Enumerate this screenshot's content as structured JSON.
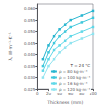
{
  "chart_data": {
    "type": "line",
    "xlabel": "Thickness (mm)",
    "ylabel": "λ, W·m⁻¹·K⁻¹",
    "xlim": [
      0,
      100
    ],
    "ylim": [
      0.025,
      0.062
    ],
    "xticks": [
      0,
      20,
      40,
      60,
      80,
      100
    ],
    "yticks": [
      0.025,
      {
        "value": 0.03,
        "label": "0.030"
      },
      0.035,
      {
        "value": 0.04,
        "label": "0.040"
      },
      0.045,
      {
        "value": 0.05,
        "label": "0.050"
      },
      0.055,
      {
        "value": 0.06,
        "label": "0.060"
      }
    ],
    "grid": false,
    "legend": "lower right",
    "legend_title": "T = 24 °C",
    "marker": "square",
    "x": [
      10,
      20,
      30,
      40,
      50,
      60,
      80,
      100
    ],
    "series": [
      {
        "name": "ρ = 80 kg·m⁻³",
        "color": "#29b6d0",
        "values": [
          0.038,
          0.044,
          0.048,
          0.051,
          0.053,
          0.055,
          0.057,
          0.059
        ]
      },
      {
        "name": "ρ = 100 kg·m⁻³",
        "color": "#40c8dc",
        "values": [
          0.035,
          0.041,
          0.045,
          0.048,
          0.05,
          0.052,
          0.054,
          0.056
        ]
      },
      {
        "name": "ρ = 16 kg·m⁻³",
        "color": "#60d8e8",
        "values": [
          0.033,
          0.038,
          0.042,
          0.044,
          0.046,
          0.048,
          0.05,
          0.052
        ]
      },
      {
        "name": "ρ = 120 kg·m⁻³",
        "color": "#90e4f0",
        "values": [
          0.03,
          0.035,
          0.038,
          0.041,
          0.043,
          0.045,
          0.047,
          0.049
        ]
      }
    ]
  }
}
